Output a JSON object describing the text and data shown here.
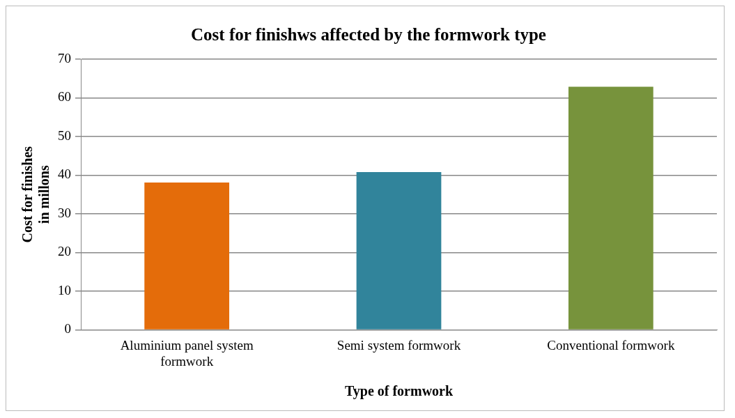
{
  "chart_data": {
    "type": "bar",
    "title": "Cost for finishws affected by the formwork type",
    "xlabel": "Type of formwork",
    "ylabel": "Cost for finishes in millons",
    "categories": [
      "Aluminium panel system formwork",
      "Semi system formwork",
      "Conventional formwork"
    ],
    "values": [
      38.1,
      40.8,
      62.9
    ],
    "colors": [
      "#e46c0a",
      "#31849b",
      "#77933c"
    ],
    "ylim": [
      0,
      70
    ],
    "yticks": [
      0,
      10,
      20,
      30,
      40,
      50,
      60,
      70
    ],
    "grid": "y",
    "legend": false
  }
}
